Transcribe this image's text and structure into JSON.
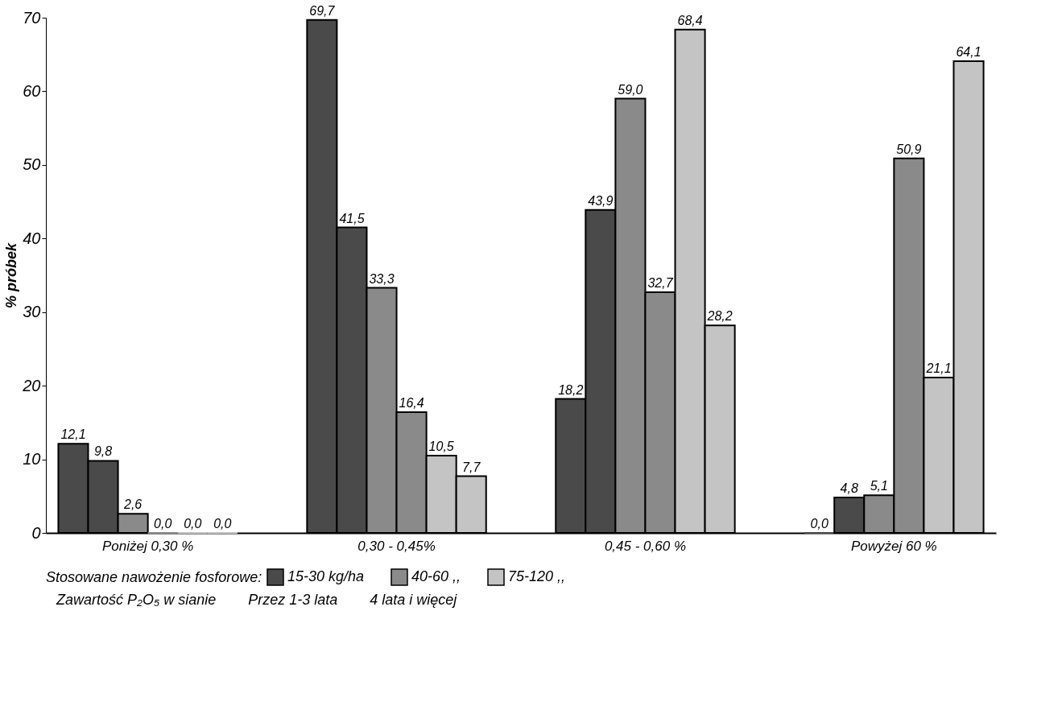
{
  "chart_data": {
    "type": "bar",
    "ylabel": "% próbek",
    "categories": [
      "Poniżej 0,30 %",
      "0,30 - 0,45%",
      "0,45 - 0,60 %",
      "Powyżej 60 %"
    ],
    "ylim": [
      0,
      70
    ],
    "yticks": [
      0,
      10,
      20,
      30,
      40,
      50,
      60,
      70
    ],
    "grid": false,
    "legend": "bottom",
    "legend_title": "Stosowane nawożenie fosforowe:",
    "series": [
      {
        "name": "15-30 kg/ha",
        "color": "#4a4a4a",
        "values": [
          12.1,
          69.7,
          18.2,
          0.0
        ],
        "value_labels": [
          "12,1",
          "69,7",
          "18,2",
          "0,0"
        ]
      },
      {
        "color": "#4a4a4a",
        "values": [
          9.8,
          41.5,
          43.9,
          4.8
        ],
        "value_labels": [
          "9,8",
          "41,5",
          "43,9",
          "4,8"
        ]
      },
      {
        "name": "40-60 ,,",
        "color": "#8a8a8a",
        "values": [
          2.6,
          33.3,
          59.0,
          5.1
        ],
        "value_labels": [
          "2,6",
          "33,3",
          "59,0",
          "5,1"
        ]
      },
      {
        "color": "#8a8a8a",
        "values": [
          0.0,
          16.4,
          32.7,
          50.9
        ],
        "value_labels": [
          "0,0",
          "16,4",
          "32,7",
          "50,9"
        ]
      },
      {
        "name": "75-120 ,,",
        "color": "#c4c4c4",
        "values": [
          0.0,
          10.5,
          68.4,
          21.1
        ],
        "value_labels": [
          "0,0",
          "10,5",
          "68,4",
          "21,1"
        ]
      },
      {
        "color": "#c4c4c4",
        "values": [
          0.0,
          7.7,
          28.2,
          64.1
        ],
        "value_labels": [
          "0,0",
          "7,7",
          "28,2",
          "64,1"
        ]
      }
    ],
    "annotations": [
      "Zawartość P₂O₅ w sianie",
      "Przez 1-3 lata",
      "4 lata i więcej"
    ]
  }
}
